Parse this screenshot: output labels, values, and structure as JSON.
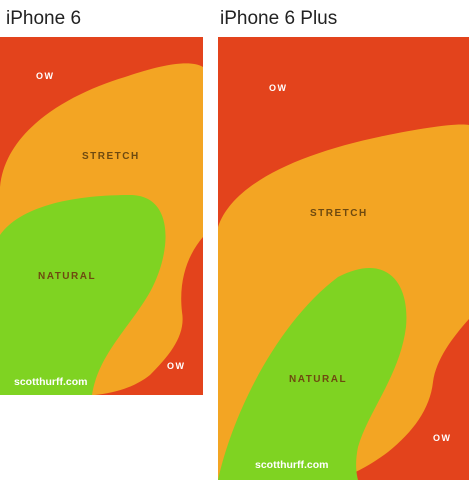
{
  "panels": [
    {
      "title": "iPhone 6",
      "zones": {
        "ow_top": "OW",
        "stretch": "STRETCH",
        "natural": "NATURAL",
        "ow_bottom": "OW"
      },
      "credit": "scotthurff.com"
    },
    {
      "title": "iPhone 6 Plus",
      "zones": {
        "ow_top": "OW",
        "stretch": "STRETCH",
        "natural": "NATURAL",
        "ow_bottom": "OW"
      },
      "credit": "scotthurff.com"
    }
  ],
  "colors": {
    "ow": "#e3431c",
    "stretch": "#f3a523",
    "natural": "#7fd322",
    "label_dark": "#6e4a10",
    "label_light": "#ffffff"
  }
}
